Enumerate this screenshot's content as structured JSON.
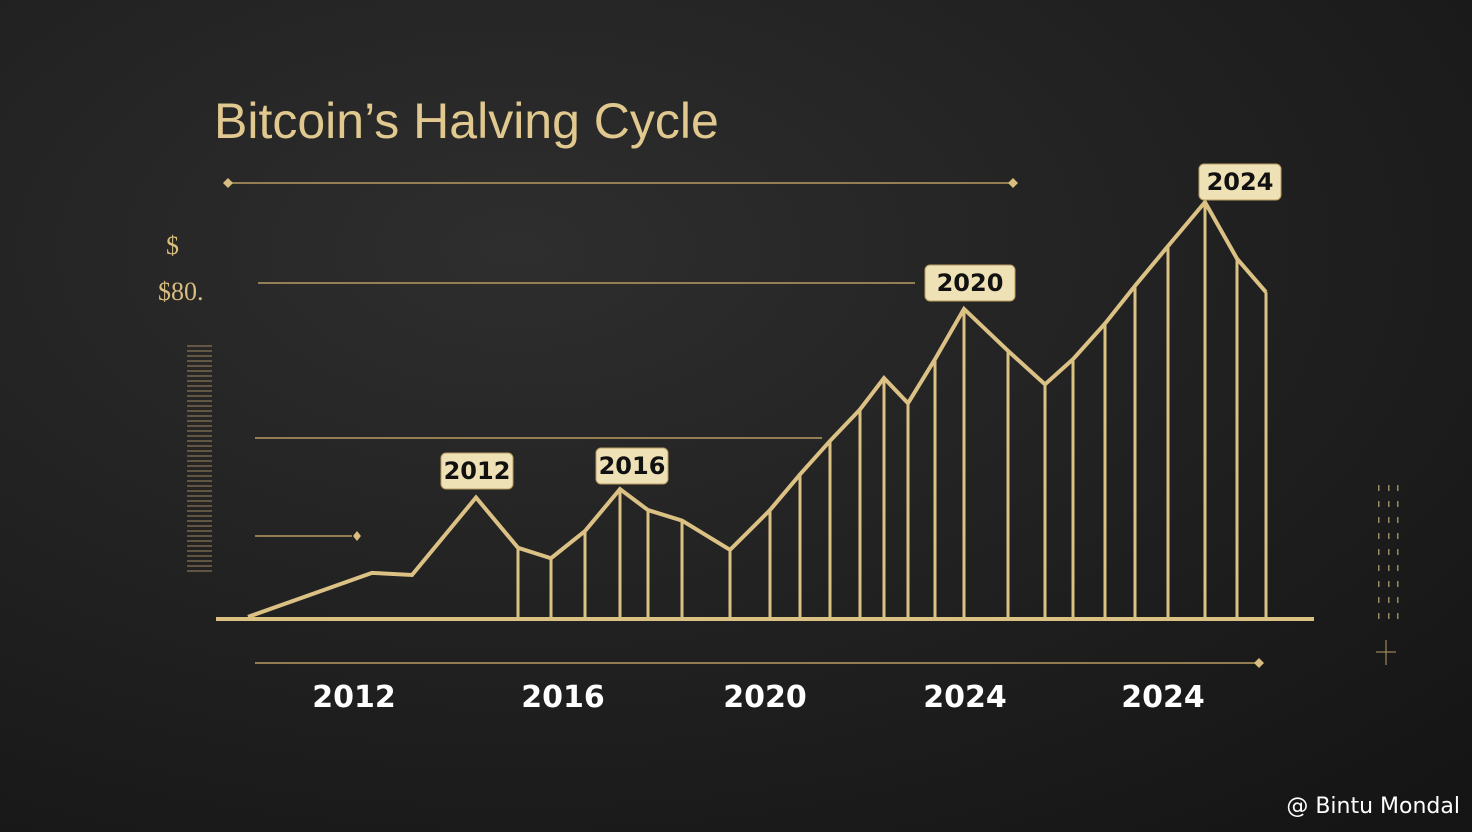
{
  "chart_data": {
    "type": "line",
    "title": "Bitcoin’s Halving Cycle",
    "y_symbol": "$",
    "y_annotation": "$80.",
    "categories": [
      null,
      null,
      null,
      null,
      null,
      null,
      null,
      null,
      null,
      null,
      null,
      null,
      null,
      null,
      null,
      null,
      null,
      null,
      null,
      null,
      null,
      null,
      null,
      null,
      null,
      null,
      null,
      null
    ],
    "values": [
      0.5,
      11,
      10.5,
      29,
      17,
      14.5,
      21,
      31,
      26,
      23.5,
      16.5,
      26,
      34.5,
      42.5,
      50,
      57.5,
      51.5,
      62,
      74,
      64,
      56,
      62,
      70.5,
      79.5,
      89,
      99.5,
      86,
      78
    ],
    "color": "#dcc185",
    "ylim": [
      0,
      100
    ],
    "callouts": [
      "2012",
      "2016",
      "2020",
      "2024"
    ],
    "x_labels": [
      "2012",
      "2016",
      "2020",
      "2024",
      "2024"
    ],
    "watermark": "@ Bintu Mondal"
  }
}
